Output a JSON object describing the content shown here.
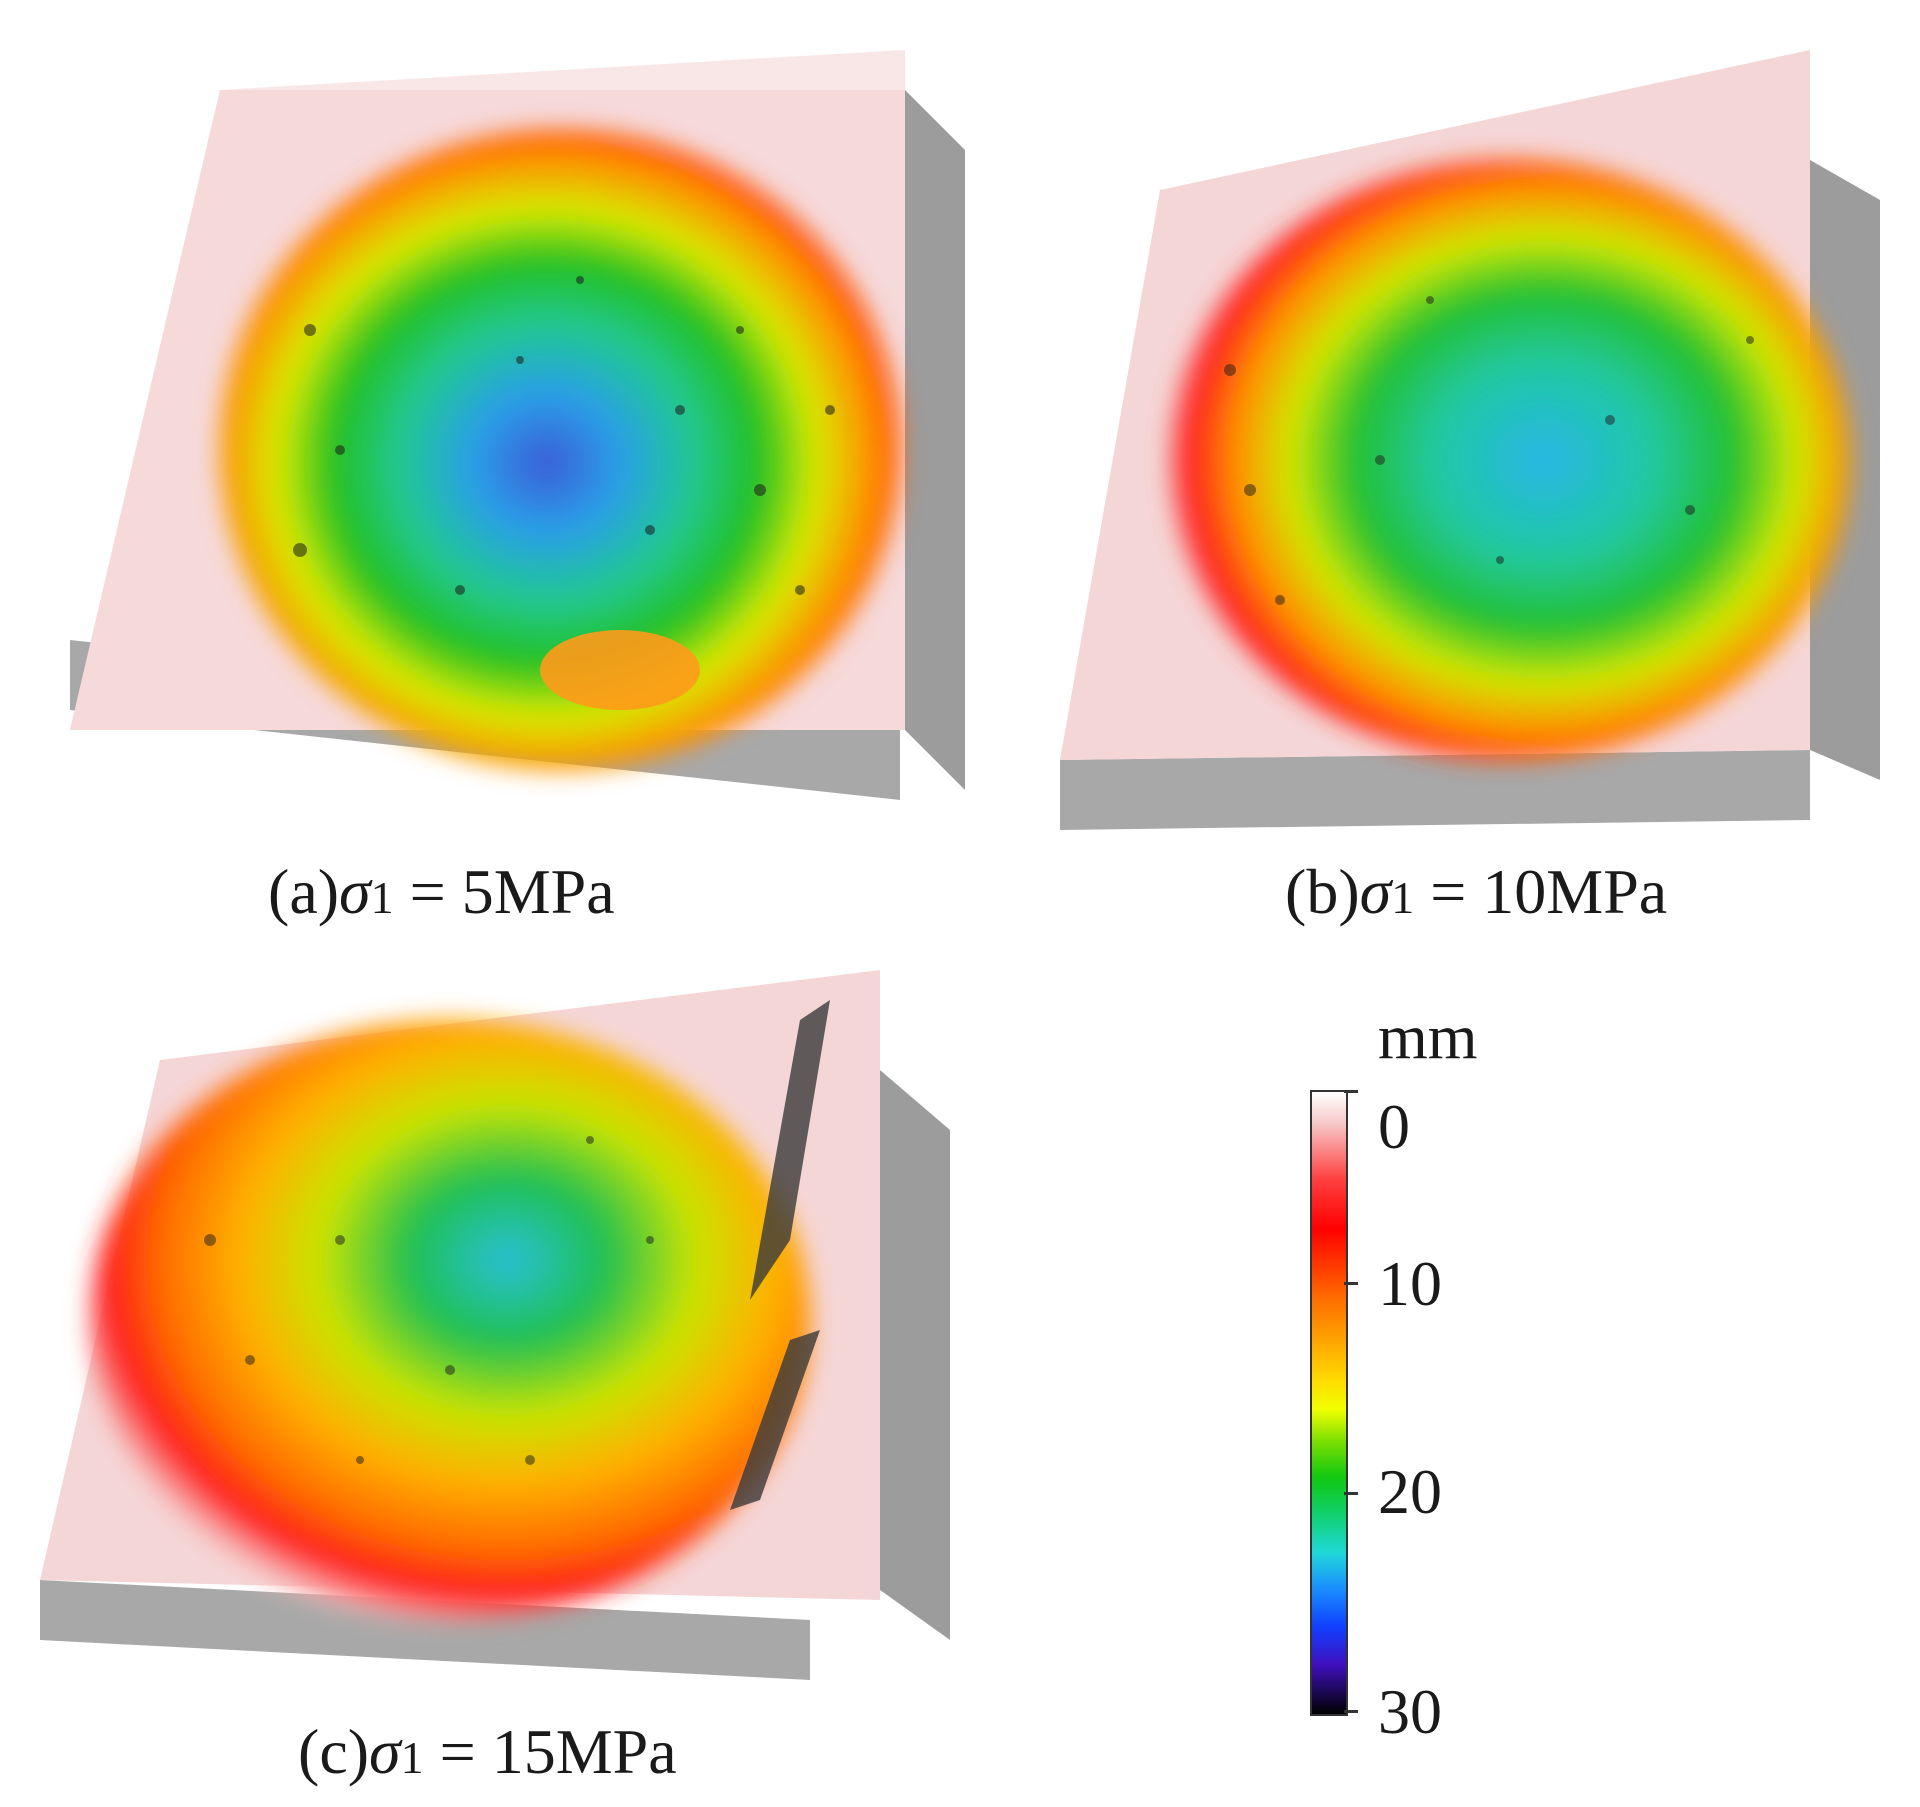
{
  "panels": [
    {
      "letter": "(a)",
      "symbol": "σ",
      "subscript": "1",
      "rest": " = 5MPa"
    },
    {
      "letter": "(b)",
      "symbol": "σ",
      "subscript": "1",
      "rest": " = 10MPa"
    },
    {
      "letter": "(c)",
      "symbol": "σ",
      "subscript": "1",
      "rest": " = 15MPa"
    }
  ],
  "colorbar": {
    "unit": "mm",
    "ticks": [
      "0",
      "10",
      "20",
      "30"
    ],
    "range": [
      0,
      30
    ]
  },
  "colors": {
    "block_side": "#9e9e9e",
    "block_top": "#f6d6d6",
    "shallow": "#ff2a2a",
    "mid": "#ffd000",
    "deep": "#1aa0ff"
  }
}
